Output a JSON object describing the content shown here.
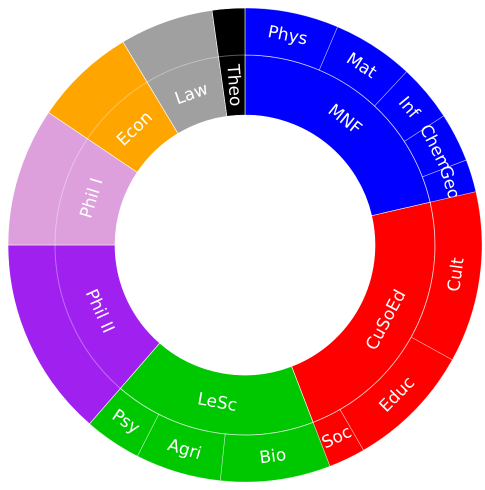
{
  "chart_data": {
    "type": "sunburst",
    "nodes": [
      {
        "name": "MNF",
        "color": "#0000ff",
        "children": [
          {
            "name": "Phys",
            "value": 23
          },
          {
            "name": "Mat",
            "value": 20
          },
          {
            "name": "Inf",
            "value": 14
          },
          {
            "name": "Chem",
            "value": 12
          },
          {
            "name": "Geo",
            "value": 8
          }
        ]
      },
      {
        "name": "CuSoEd",
        "color": "#ff0000",
        "children": [
          {
            "name": "Cult",
            "value": 42
          },
          {
            "name": "Educ",
            "value": 31
          },
          {
            "name": "Soc",
            "value": 9
          }
        ]
      },
      {
        "name": "LeSc",
        "color": "#00c800",
        "children": [
          {
            "name": "Bio",
            "value": 27
          },
          {
            "name": "Agri",
            "value": 21
          },
          {
            "name": "Psy",
            "value": 14
          }
        ]
      },
      {
        "name": "Phil II",
        "color": "#a020f0",
        "value": 49
      },
      {
        "name": "Phil I",
        "color": "#dda0dd",
        "value": 34
      },
      {
        "name": "Econ",
        "color": "#ffa500",
        "value": 25
      },
      {
        "name": "Law",
        "color": "#a0a0a0",
        "value": 23
      },
      {
        "name": "Theo",
        "color": "#000000",
        "value": 8
      }
    ]
  }
}
